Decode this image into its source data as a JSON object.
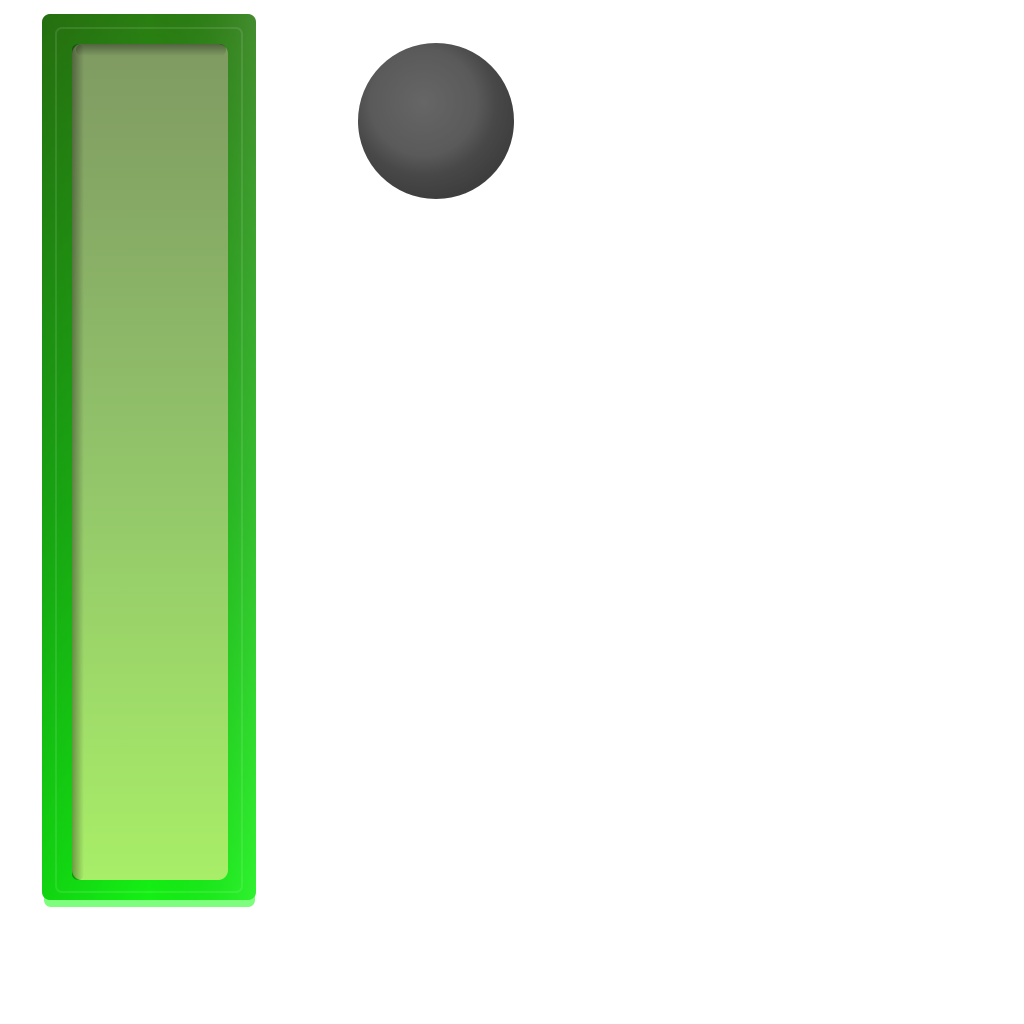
{
  "icons": {
    "bar": "vertical-bar-icon",
    "dot": "dot-icon"
  },
  "colors": {
    "background": "#ffffff",
    "bar_frame_top": "#2a7d12",
    "bar_frame_bottom": "#14f014",
    "bar_fill_top": "#7f9a62",
    "bar_fill_bottom": "#a8ee68",
    "dot_light": "#666666",
    "dot_dark": "#3e3e3e"
  }
}
